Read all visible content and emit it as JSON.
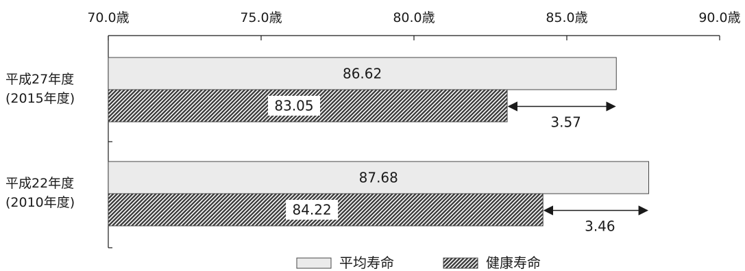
{
  "chart_data": {
    "type": "bar",
    "orientation": "horizontal",
    "xlim": [
      70,
      90
    ],
    "tick_values": [
      70,
      75,
      80,
      85,
      90
    ],
    "tick_labels": [
      "70.0歳",
      "75.0歳",
      "80.0歳",
      "85.0歳",
      "90.0歳"
    ],
    "categories": [
      {
        "line1": "平成27年度",
        "line2": "(2015年度)"
      },
      {
        "line1": "平成22年度",
        "line2": "(2010年度)"
      }
    ],
    "series": [
      {
        "name": "平均寿命",
        "values": [
          86.62,
          87.68
        ],
        "labels": [
          "86.62",
          "87.68"
        ],
        "fill": "#ebebeb",
        "pattern": "none"
      },
      {
        "name": "健康寿命",
        "values": [
          83.05,
          84.22
        ],
        "labels": [
          "83.05",
          "84.22"
        ],
        "fill": "#555555",
        "pattern": "hatch"
      }
    ],
    "differences": [
      "3.57",
      "3.46"
    ],
    "legend_position": "bottom-center",
    "grid": false
  }
}
